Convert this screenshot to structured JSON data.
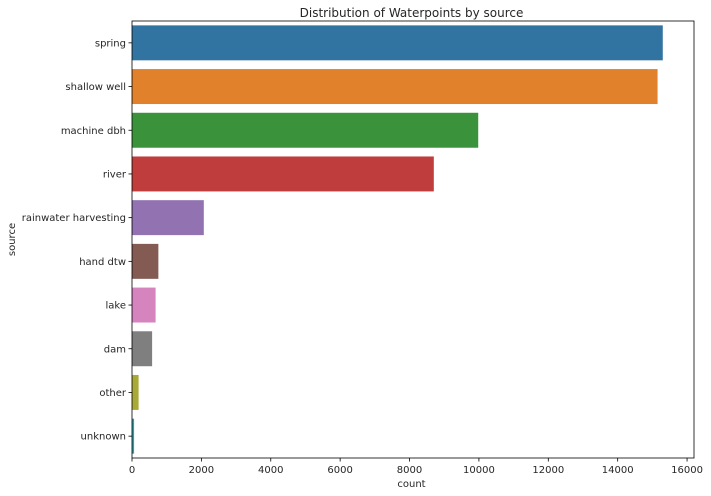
{
  "chart_data": {
    "type": "bar",
    "orientation": "horizontal",
    "title": "Distribution of Waterpoints by source",
    "xlabel": "count",
    "ylabel": "source",
    "xlim": [
      0,
      16200
    ],
    "xticks": [
      0,
      2000,
      4000,
      6000,
      8000,
      10000,
      12000,
      14000,
      16000
    ],
    "grid": false,
    "categories": [
      "spring",
      "shallow well",
      "machine dbh",
      "river",
      "rainwater harvesting",
      "hand dtw",
      "lake",
      "dam",
      "other",
      "unknown"
    ],
    "values": [
      15300,
      15150,
      9980,
      8700,
      2070,
      760,
      680,
      580,
      190,
      60
    ],
    "colors": [
      "#3274a1",
      "#e1812c",
      "#3a923a",
      "#c03d3e",
      "#9372b2",
      "#845b53",
      "#d684bd",
      "#7f7f7f",
      "#a9aa35",
      "#2ea0a8"
    ]
  }
}
